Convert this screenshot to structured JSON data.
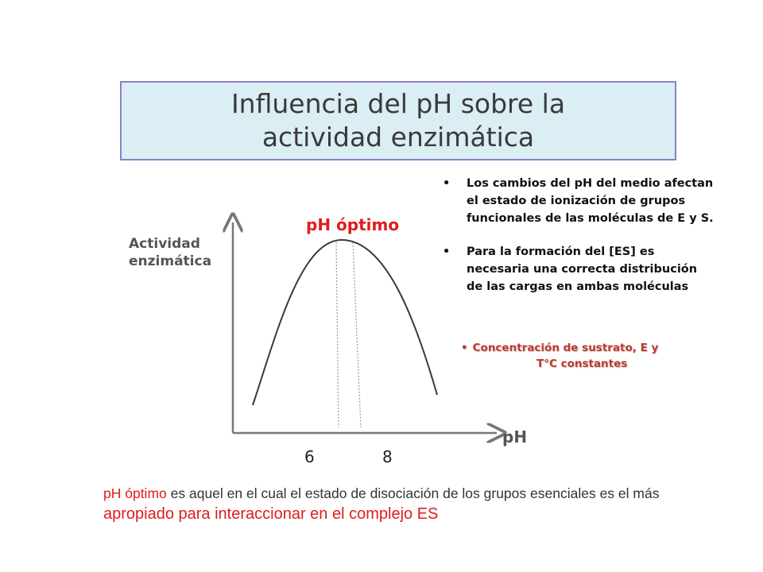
{
  "title": {
    "line1": "Influencia del pH sobre la",
    "line2": "actividad enzimática"
  },
  "graph": {
    "y_label_line1": "Actividad",
    "y_label_line2": "enzimática",
    "x_label": "pH",
    "optimum_label": "pH óptimo",
    "ticks": [
      "6",
      "8"
    ]
  },
  "bullets": [
    "Los cambios del pH del medio afectan el estado de ionización de grupos funcionales de las moléculas de E y S.",
    "Para la formación del [ES] es necesaria una correcta distribución de las cargas en ambas moléculas"
  ],
  "condition": {
    "line1": "Concentración de sustrato, E y",
    "line2": "T°C constantes"
  },
  "footer": {
    "part1": "pH óptimo",
    "part2": " es aquel en el cual el estado de disociación de los grupos esenciales es el más ",
    "part3": "apropiado para interaccionar en el complejo ES"
  },
  "colors": {
    "title_bg": "#daeef3",
    "title_border": "#8c7fcd",
    "accent_red": "#e01c1c"
  }
}
